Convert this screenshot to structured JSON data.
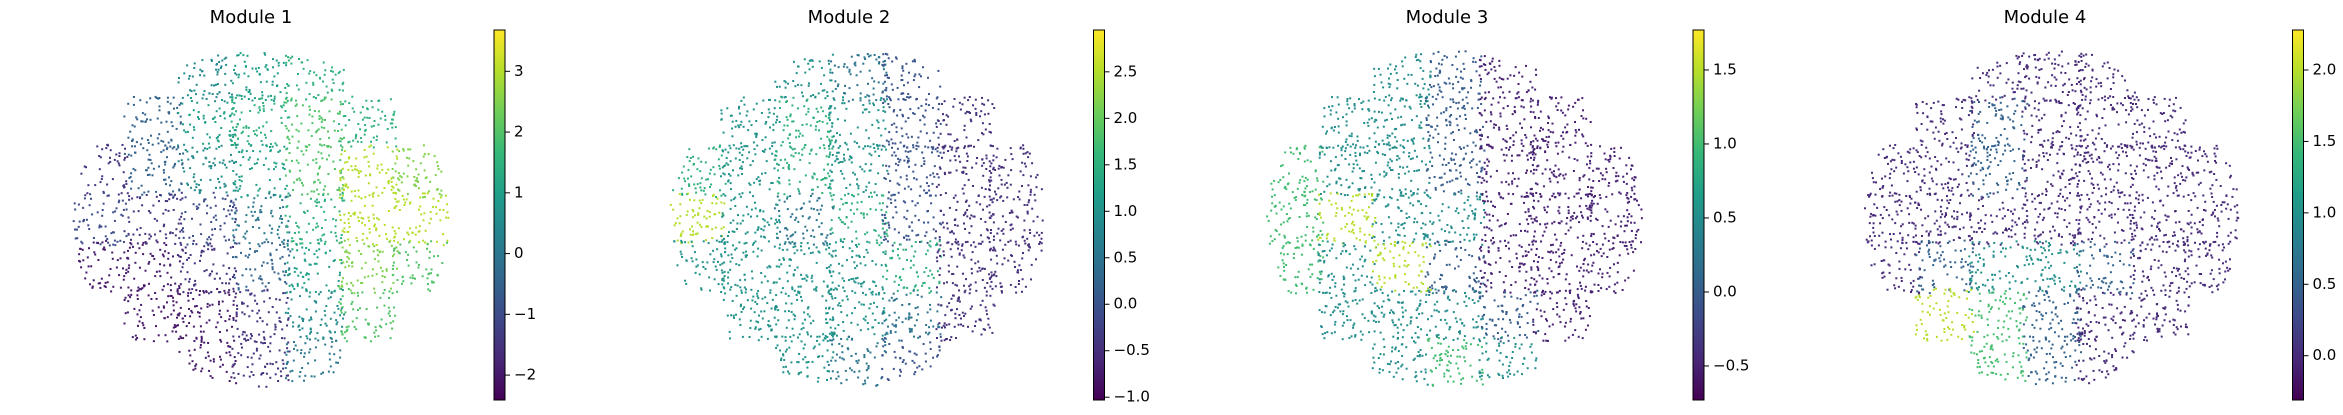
{
  "chart_data": [
    {
      "type": "scatter",
      "title": "Module 1",
      "cmap": "viridis",
      "x": [
        -1,
        0,
        1,
        -2,
        -1,
        0,
        1,
        2,
        -3,
        -2,
        -1,
        0,
        1,
        2,
        3,
        -3,
        -2,
        -1,
        0,
        1,
        2,
        3,
        -3,
        -2,
        -1,
        0,
        1,
        2,
        3,
        -2,
        -1,
        0,
        1,
        2,
        -1,
        0,
        1
      ],
      "y": [
        3,
        3,
        3,
        2,
        2,
        2,
        2,
        2,
        1,
        1,
        1,
        1,
        1,
        1,
        1,
        0,
        0,
        0,
        0,
        0,
        0,
        0,
        -1,
        -1,
        -1,
        -1,
        -1,
        -1,
        -1,
        -2,
        -2,
        -2,
        -2,
        -2,
        -3,
        -3,
        -3
      ],
      "values": [
        0.5,
        1,
        1.5,
        -0.5,
        1,
        1.5,
        2,
        1.5,
        -1.5,
        -0.5,
        0.5,
        1,
        2,
        3,
        2.5,
        -1,
        -1.5,
        -1,
        0,
        1.5,
        3,
        3,
        -2,
        -2,
        -1.5,
        -0.5,
        1,
        2.5,
        2,
        -2,
        -2,
        -1.5,
        0.5,
        2,
        -2,
        -1.5,
        0
      ],
      "clim": [
        -2.41,
        3.68
      ],
      "cticks": [
        {
          "value": -2,
          "label": "−2"
        },
        {
          "value": -1,
          "label": "−1"
        },
        0,
        1,
        2,
        3
      ]
    },
    {
      "type": "scatter",
      "title": "Module 2",
      "cmap": "viridis",
      "x": [
        -1,
        0,
        1,
        -2,
        -1,
        0,
        1,
        2,
        -3,
        -2,
        -1,
        0,
        1,
        2,
        3,
        -3,
        -2,
        -1,
        0,
        1,
        2,
        3,
        -3,
        -2,
        -1,
        0,
        1,
        2,
        3,
        -2,
        -1,
        0,
        1,
        2,
        -1,
        0,
        1
      ],
      "y": [
        3,
        3,
        3,
        2,
        2,
        2,
        2,
        2,
        1,
        1,
        1,
        1,
        1,
        1,
        1,
        0,
        0,
        0,
        0,
        0,
        0,
        0,
        -1,
        -1,
        -1,
        -1,
        -1,
        -1,
        -1,
        -2,
        -2,
        -2,
        -2,
        -2,
        -3,
        -3,
        -3
      ],
      "values": [
        1,
        0.5,
        0,
        1,
        1.5,
        1,
        0,
        -0.5,
        1.5,
        1,
        1.5,
        1,
        0,
        -0.5,
        -0.5,
        2.5,
        1,
        0.5,
        1.5,
        0,
        -0.5,
        -0.5,
        1,
        1,
        1,
        1,
        1.5,
        -0.5,
        -0.5,
        1,
        1,
        1,
        0.5,
        -0.5,
        1,
        0.5,
        0
      ],
      "clim": [
        -1.03,
        2.95
      ],
      "cticks": [
        {
          "value": -1,
          "label": "−1.0"
        },
        {
          "value": -0.5,
          "label": "−0.5"
        },
        {
          "value": 0,
          "label": "0.0"
        },
        0.5,
        {
          "value": 1,
          "label": "1.0"
        },
        1.5,
        {
          "value": 2,
          "label": "2.0"
        },
        2.5
      ]
    },
    {
      "type": "scatter",
      "title": "Module 3",
      "cmap": "viridis",
      "x": [
        -1,
        0,
        1,
        -2,
        -1,
        0,
        1,
        2,
        -3,
        -2,
        -1,
        0,
        1,
        2,
        3,
        -3,
        -2,
        -1,
        0,
        1,
        2,
        3,
        -3,
        -2,
        -1,
        0,
        1,
        2,
        3,
        -2,
        -1,
        0,
        1,
        2,
        -1,
        0,
        1
      ],
      "y": [
        3,
        3,
        3,
        2,
        2,
        2,
        2,
        2,
        1,
        1,
        1,
        1,
        1,
        1,
        1,
        0,
        0,
        0,
        0,
        0,
        0,
        0,
        -1,
        -1,
        -1,
        -1,
        -1,
        -1,
        -1,
        -2,
        -2,
        -2,
        -2,
        -2,
        -3,
        -3,
        -3
      ],
      "values": [
        0.5,
        0,
        -0.5,
        0.5,
        0.5,
        0,
        -0.5,
        -0.5,
        1,
        0.5,
        0.5,
        0,
        -0.5,
        -0.5,
        -0.5,
        1,
        1.5,
        0.5,
        0.5,
        -0.5,
        -0.5,
        -0.5,
        1,
        0.5,
        1.5,
        0,
        -0.5,
        -0.5,
        -0.5,
        0.5,
        0.5,
        0.5,
        0,
        -0.5,
        0.5,
        1,
        0.5
      ],
      "clim": [
        -0.73,
        1.77
      ],
      "cticks": [
        {
          "value": -0.5,
          "label": "−0.5"
        },
        {
          "value": 0,
          "label": "0.0"
        },
        0.5,
        {
          "value": 1,
          "label": "1.0"
        },
        1.5
      ]
    },
    {
      "type": "scatter",
      "title": "Module 4",
      "cmap": "viridis",
      "x": [
        -1,
        0,
        1,
        -2,
        -1,
        0,
        1,
        2,
        -3,
        -2,
        -1,
        0,
        1,
        2,
        3,
        -3,
        -2,
        -1,
        0,
        1,
        2,
        3,
        -3,
        -2,
        -1,
        0,
        1,
        2,
        3,
        -2,
        -1,
        0,
        1,
        2,
        -1,
        0,
        1
      ],
      "y": [
        3,
        3,
        3,
        2,
        2,
        2,
        2,
        2,
        1,
        1,
        1,
        1,
        1,
        1,
        1,
        0,
        0,
        0,
        0,
        0,
        0,
        0,
        -1,
        -1,
        -1,
        -1,
        -1,
        -1,
        -1,
        -2,
        -2,
        -2,
        -2,
        -2,
        -3,
        -3,
        -3
      ],
      "values": [
        0,
        0,
        0,
        0,
        0.5,
        0,
        0,
        0,
        0,
        0,
        0.5,
        0,
        0,
        0,
        0,
        0,
        0,
        0,
        0,
        0,
        0,
        0,
        0,
        0.5,
        1,
        1,
        0.5,
        0,
        0,
        2,
        1.5,
        0.5,
        0,
        0,
        1.5,
        0.5,
        0
      ],
      "clim": [
        -0.31,
        2.28
      ],
      "cticks": [
        {
          "value": 0,
          "label": "0.0"
        },
        0.5,
        {
          "value": 1,
          "label": "1.0"
        },
        1.5,
        {
          "value": 2,
          "label": "2.0"
        }
      ]
    }
  ]
}
